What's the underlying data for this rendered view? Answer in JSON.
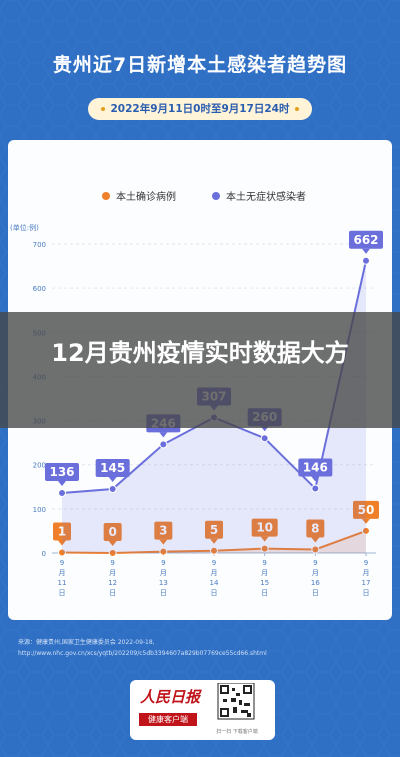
{
  "header": {
    "title": "贵州近7日新增本土感染者趋势图",
    "date_range": "2022年9月11日0时至9月17日24时"
  },
  "overlay": {
    "headline": "12月贵州疫情实时数据大方"
  },
  "footer": {
    "source": "来源：健康贵州,国家卫生健康委员会 2022-09-18,",
    "url": "http://www.nhc.gov.cn/xcs/yqtb/202209/c5db3394607a829b07769ce55cd66.shtml",
    "logo_main": "人民日报",
    "logo_sub": "健康客户端",
    "qr_caption": "扫一扫 下载客户端"
  },
  "colors": {
    "background": "#2f6fc4",
    "confirmed": "#f07f2a",
    "asymptomatic": "#6b6fdc"
  },
  "chart_data": {
    "type": "line",
    "title": "贵州近7日新增本土感染者趋势图",
    "ylabel": "(单位:例)",
    "ylim": [
      0,
      700
    ],
    "yticks": [
      0,
      100,
      200,
      300,
      400,
      500,
      600,
      700
    ],
    "grid": true,
    "legend_position": "top",
    "categories": [
      "9月11日",
      "9月12日",
      "9月13日",
      "9月14日",
      "9月15日",
      "9月16日",
      "9月17日"
    ],
    "series": [
      {
        "name": "本土确诊病例",
        "color": "#f07f2a",
        "values": [
          1,
          0,
          3,
          5,
          10,
          8,
          50
        ],
        "labels": [
          "1",
          "0",
          "3",
          "5",
          "10",
          "8",
          "50"
        ]
      },
      {
        "name": "本土无症状感染者",
        "color": "#6b6fdc",
        "values": [
          136,
          145,
          246,
          307,
          260,
          146,
          662
        ],
        "labels": [
          "136",
          "145",
          "246",
          "307",
          "260",
          "146",
          "662"
        ]
      }
    ]
  }
}
